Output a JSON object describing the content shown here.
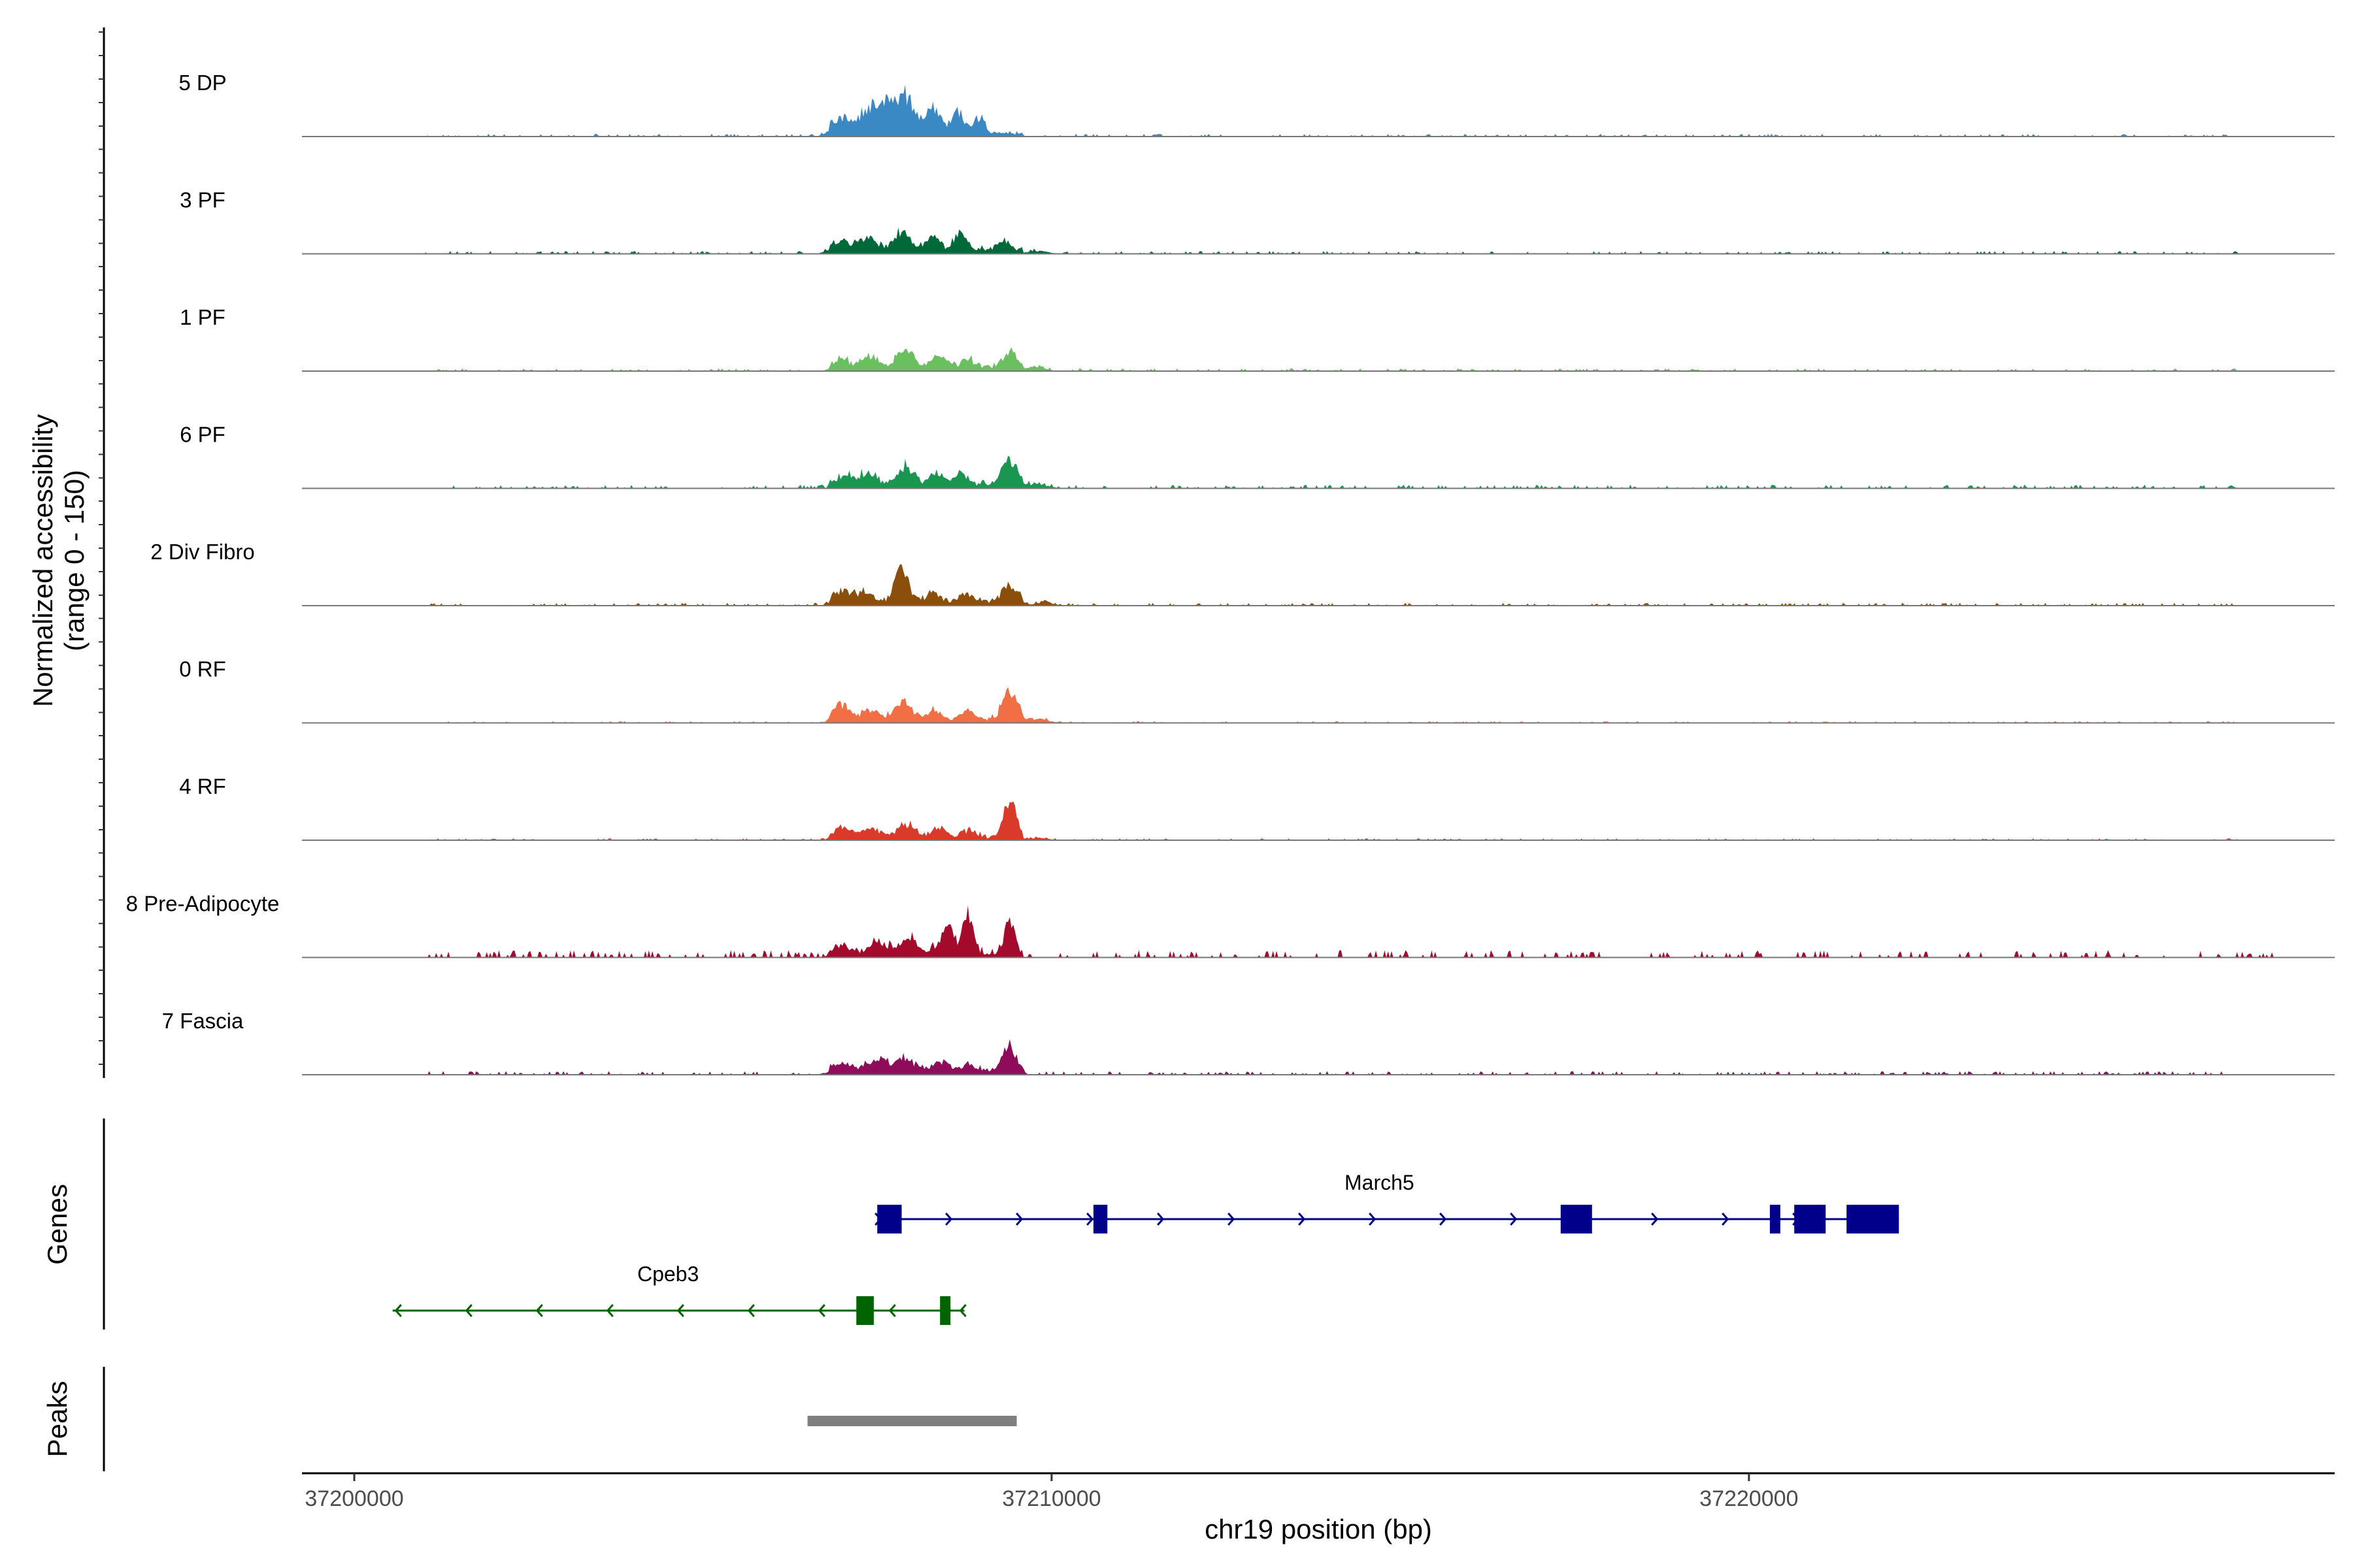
{
  "chart_data": {
    "type": "area",
    "title": "",
    "coverage_panel": {
      "ylabel_line1": "Normalized accessibility",
      "ylabel_line2": "(range 0 - 150)",
      "y_range": [
        0,
        150
      ],
      "x_range_bp": [
        37199250,
        37228400
      ],
      "tracks": [
        {
          "name": "5 DP",
          "color": "#3A89C4",
          "peaks": [
            [
              37207600,
              45,
              120
            ],
            [
              37207900,
              55,
              120
            ],
            [
              37208300,
              40,
              100
            ],
            [
              37208650,
              30,
              90
            ],
            [
              37208950,
              22,
              80
            ],
            [
              37207000,
              25,
              140
            ],
            [
              37207350,
              30,
              110
            ]
          ],
          "noise_range": [
            37201000,
            37227000
          ],
          "noise_amp": 3
        },
        {
          "name": "3 PF",
          "color": "#00693A",
          "peaks": [
            [
              37207000,
              14,
              150
            ],
            [
              37207400,
              18,
              120
            ],
            [
              37207850,
              30,
              110
            ],
            [
              37208300,
              20,
              100
            ],
            [
              37208700,
              24,
              90
            ],
            [
              37209300,
              13,
              90
            ],
            [
              37209800,
              4,
              150
            ]
          ],
          "noise_range": [
            37201000,
            37227000
          ],
          "noise_amp": 3
        },
        {
          "name": "1 PF",
          "color": "#6ABF5F",
          "peaks": [
            [
              37207000,
              12,
              120
            ],
            [
              37207400,
              18,
              110
            ],
            [
              37207900,
              30,
              110
            ],
            [
              37208400,
              17,
              100
            ],
            [
              37208800,
              14,
              90
            ],
            [
              37209400,
              22,
              110
            ],
            [
              37209800,
              6,
              120
            ]
          ],
          "noise_range": [
            37201000,
            37227000
          ],
          "noise_amp": 3
        },
        {
          "name": "6 PF",
          "color": "#1A9650",
          "peaks": [
            [
              37207100,
              12,
              150
            ],
            [
              37207400,
              13,
              110
            ],
            [
              37207900,
              30,
              110
            ],
            [
              37208350,
              15,
              100
            ],
            [
              37208700,
              18,
              90
            ],
            [
              37209400,
              38,
              110
            ],
            [
              37209800,
              6,
              150
            ]
          ],
          "noise_range": [
            37201000,
            37227000
          ],
          "noise_amp": 4
        },
        {
          "name": "2 Div Fibro",
          "color": "#8B4E0B",
          "peaks": [
            [
              37207000,
              18,
              120
            ],
            [
              37207300,
              15,
              110
            ],
            [
              37207850,
              48,
              100
            ],
            [
              37208300,
              15,
              100
            ],
            [
              37208800,
              12,
              90
            ],
            [
              37209400,
              26,
              110
            ],
            [
              37209900,
              5,
              120
            ]
          ],
          "noise_range": [
            37201000,
            37227000
          ],
          "noise_amp": 3
        },
        {
          "name": "0 RF",
          "color": "#F26E44",
          "peaks": [
            [
              37207000,
              24,
              110
            ],
            [
              37207400,
              14,
              120
            ],
            [
              37207850,
              28,
              120
            ],
            [
              37208300,
              13,
              100
            ],
            [
              37208800,
              14,
              90
            ],
            [
              37209400,
              45,
              100
            ],
            [
              37209800,
              6,
              150
            ]
          ],
          "noise_range": [
            37201000,
            37227000
          ],
          "noise_amp": 2
        },
        {
          "name": "4 RF",
          "color": "#DA3A2A",
          "peaks": [
            [
              37207000,
              14,
              120
            ],
            [
              37207400,
              12,
              120
            ],
            [
              37207900,
              18,
              120
            ],
            [
              37208400,
              12,
              100
            ],
            [
              37208800,
              10,
              90
            ],
            [
              37209400,
              60,
              80
            ],
            [
              37209800,
              3,
              150
            ]
          ],
          "noise_range": [
            37201000,
            37227000
          ],
          "noise_amp": 2
        },
        {
          "name": "8 Pre-Adipocyte",
          "color": "#A30A2C",
          "peaks": [
            [
              37207000,
              14,
              120
            ],
            [
              37207500,
              18,
              120
            ],
            [
              37207950,
              28,
              120
            ],
            [
              37208500,
              38,
              90
            ],
            [
              37208800,
              60,
              80
            ],
            [
              37209400,
              55,
              70
            ]
          ],
          "noise_range": [
            37201000,
            37227500
          ],
          "noise_amp": 8
        },
        {
          "name": "7 Fascia",
          "color": "#8E0C5A",
          "peaks": [
            [
              37207000,
              12,
              150
            ],
            [
              37207500,
              14,
              150
            ],
            [
              37207900,
              18,
              150
            ],
            [
              37208400,
              13,
              110
            ],
            [
              37208800,
              10,
              100
            ],
            [
              37209400,
              36,
              100
            ]
          ],
          "noise_range": [
            37201000,
            37227000
          ],
          "noise_amp": 4
        }
      ]
    },
    "genes_panel": {
      "ylabel": "Genes",
      "genes": [
        {
          "name": "March5",
          "strand": "+",
          "color": "#00008B",
          "start": 37207500,
          "end": 37222150,
          "exons": [
            [
              37207500,
              37207850
            ],
            [
              37210600,
              37210800
            ],
            [
              37217300,
              37217750
            ],
            [
              37220300,
              37220450
            ],
            [
              37220650,
              37221100
            ],
            [
              37221400,
              37222150
            ]
          ],
          "row": 0
        },
        {
          "name": "Cpeb3",
          "strand": "-",
          "color": "#006400",
          "start": 37200550,
          "end": 37208750,
          "exons": [
            [
              37207200,
              37207450
            ],
            [
              37208400,
              37208550
            ]
          ],
          "row": 1
        }
      ]
    },
    "peaks_panel": {
      "ylabel": "Peaks",
      "peaks": [
        {
          "start": 37206500,
          "end": 37209500,
          "color": "#7F7F7F"
        }
      ]
    },
    "x_axis": {
      "label": "chr19 position (bp)",
      "ticks": [
        37200000,
        37210000,
        37220000
      ],
      "tick_labels": [
        "37200000",
        "37210000",
        "37220000"
      ]
    }
  }
}
